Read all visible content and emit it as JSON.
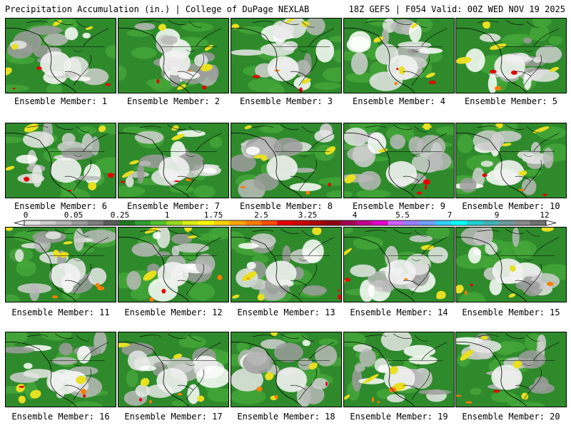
{
  "header": {
    "left_title": "Precipitation Accumulation (in.) | College of DuPage NEXLAB",
    "right_title": "18Z GEFS | F054 Valid: 00Z WED NOV 19 2025"
  },
  "members": [
    {
      "label": "Ensemble Member: 1"
    },
    {
      "label": "Ensemble Member: 2"
    },
    {
      "label": "Ensemble Member: 3"
    },
    {
      "label": "Ensemble Member: 4"
    },
    {
      "label": "Ensemble Member: 5"
    },
    {
      "label": "Ensemble Member: 6"
    },
    {
      "label": "Ensemble Member: 7"
    },
    {
      "label": "Ensemble Member: 8"
    },
    {
      "label": "Ensemble Member: 9"
    },
    {
      "label": "Ensemble Member: 10"
    },
    {
      "label": "Ensemble Member: 11"
    },
    {
      "label": "Ensemble Member: 12"
    },
    {
      "label": "Ensemble Member: 13"
    },
    {
      "label": "Ensemble Member: 14"
    },
    {
      "label": "Ensemble Member: 15"
    },
    {
      "label": "Ensemble Member: 16"
    },
    {
      "label": "Ensemble Member: 17"
    },
    {
      "label": "Ensemble Member: 18"
    },
    {
      "label": "Ensemble Member: 19"
    },
    {
      "label": "Ensemble Member: 20"
    }
  ],
  "colorbar": {
    "labels": [
      "0",
      "0.05",
      "0.25",
      "1",
      "1.75",
      "2.5",
      "3.25",
      "4",
      "5.5",
      "7",
      "9",
      "12"
    ],
    "colors": [
      "#e6e6e6",
      "#cccccc",
      "#b4b4b4",
      "#9a9a9a",
      "#7e7e7e",
      "#5a5a5a",
      "#1f7a1f",
      "#2e9e2e",
      "#55c02c",
      "#9ad81e",
      "#d8ec14",
      "#ffff00",
      "#ffd200",
      "#ffa500",
      "#ff7d00",
      "#ff4b00",
      "#e60000",
      "#c80000",
      "#aa0000",
      "#8c0010",
      "#a00050",
      "#c0008c",
      "#e000c8",
      "#d060ff",
      "#9a80ff",
      "#6fa0ff",
      "#30d0ff",
      "#00ffff",
      "#20d0d0",
      "#40b4b4",
      "#6a9a9a",
      "#8a8a8a",
      "#707070"
    ]
  }
}
